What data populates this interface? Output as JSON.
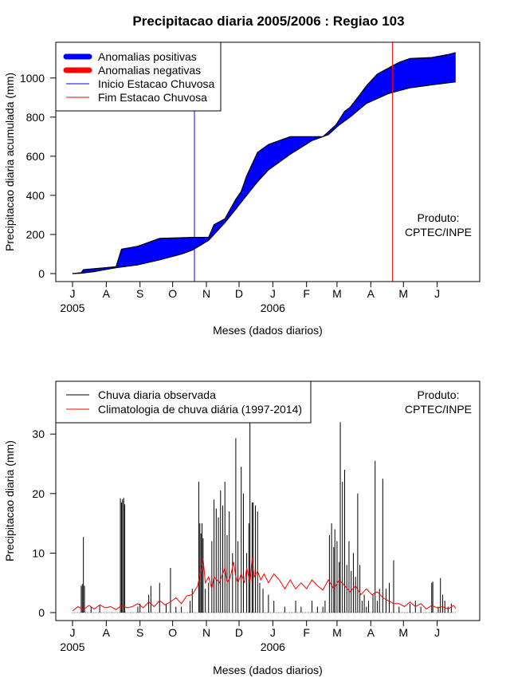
{
  "title": "Precipitacao diaria 2005/2006 : Regiao 103",
  "colors": {
    "positive": "#0000ff",
    "negative": "#ff0000",
    "observed": "#000000",
    "climatology": "#ff0000",
    "start_line": "#0000ff",
    "end_line": "#ff0000"
  },
  "chart_data": [
    {
      "type": "area",
      "ylabel": "Precipitacao diaria acumulada (mm)",
      "xlabel": "Meses (dados diarios)",
      "ylim": [
        0,
        1150
      ],
      "yticks": [
        0,
        200,
        400,
        600,
        800,
        1000
      ],
      "x_day_range": [
        0,
        365
      ],
      "month_ticks": [
        {
          "label": "J",
          "day": 0
        },
        {
          "label": "A",
          "day": 31
        },
        {
          "label": "S",
          "day": 62
        },
        {
          "label": "O",
          "day": 92
        },
        {
          "label": "N",
          "day": 123
        },
        {
          "label": "D",
          "day": 153
        },
        {
          "label": "J",
          "day": 184
        },
        {
          "label": "F",
          "day": 215
        },
        {
          "label": "M",
          "day": 243
        },
        {
          "label": "A",
          "day": 274
        },
        {
          "label": "M",
          "day": 304
        },
        {
          "label": "J",
          "day": 335
        }
      ],
      "years": [
        {
          "label": "2005",
          "day": 0
        },
        {
          "label": "2006",
          "day": 184
        }
      ],
      "legend": {
        "position": "top-left",
        "entries": [
          "Anomalias positivas",
          "Anomalias negativas",
          "Inicio Estacao Chuvosa",
          "Fim Estacao Chuvosa"
        ]
      },
      "credit": [
        "Produto:",
        "CPTEC/INPE"
      ],
      "rain_season_start_day": 112,
      "rain_season_end_day": 294,
      "observed_cumulative": [
        [
          0,
          0
        ],
        [
          8,
          5
        ],
        [
          10,
          20
        ],
        [
          40,
          35
        ],
        [
          45,
          125
        ],
        [
          60,
          140
        ],
        [
          80,
          180
        ],
        [
          110,
          185
        ],
        [
          125,
          185
        ],
        [
          130,
          250
        ],
        [
          140,
          280
        ],
        [
          150,
          380
        ],
        [
          155,
          420
        ],
        [
          160,
          500
        ],
        [
          170,
          620
        ],
        [
          175,
          640
        ],
        [
          180,
          660
        ],
        [
          200,
          700
        ],
        [
          230,
          700
        ],
        [
          242,
          760
        ],
        [
          250,
          830
        ],
        [
          255,
          850
        ],
        [
          262,
          900
        ],
        [
          270,
          960
        ],
        [
          280,
          1020
        ],
        [
          290,
          1050
        ],
        [
          300,
          1080
        ],
        [
          310,
          1100
        ],
        [
          330,
          1105
        ],
        [
          345,
          1120
        ],
        [
          352,
          1130
        ]
      ],
      "climatology_cumulative": [
        [
          0,
          0
        ],
        [
          8,
          2
        ],
        [
          20,
          10
        ],
        [
          40,
          30
        ],
        [
          60,
          45
        ],
        [
          80,
          70
        ],
        [
          100,
          100
        ],
        [
          110,
          120
        ],
        [
          125,
          170
        ],
        [
          140,
          260
        ],
        [
          150,
          330
        ],
        [
          160,
          400
        ],
        [
          170,
          470
        ],
        [
          180,
          530
        ],
        [
          200,
          610
        ],
        [
          220,
          680
        ],
        [
          235,
          710
        ],
        [
          245,
          760
        ],
        [
          255,
          800
        ],
        [
          270,
          870
        ],
        [
          290,
          920
        ],
        [
          310,
          950
        ],
        [
          330,
          965
        ],
        [
          352,
          980
        ]
      ]
    },
    {
      "type": "bar",
      "ylabel": "Precipitacao diaria (mm)",
      "xlabel": "Meses (dados diarios)",
      "ylim": [
        0,
        35
      ],
      "yticks": [
        0,
        10,
        20,
        30
      ],
      "x_day_range": [
        0,
        365
      ],
      "legend": {
        "position": "top-left",
        "entries": [
          "Chuva diaria observada",
          "Climatologia de chuva diária (1997-2014)"
        ]
      },
      "credit": [
        "Produto:",
        "CPTEC/INPE"
      ],
      "observed_daily": [
        [
          8,
          4.5
        ],
        [
          9,
          4.8
        ],
        [
          10,
          12.7
        ],
        [
          11,
          4.5
        ],
        [
          17,
          1
        ],
        [
          25,
          1.2
        ],
        [
          44,
          19.2
        ],
        [
          45,
          18.5
        ],
        [
          46,
          19
        ],
        [
          47,
          19.3
        ],
        [
          48,
          18.2
        ],
        [
          60,
          1
        ],
        [
          62,
          1.5
        ],
        [
          70,
          3
        ],
        [
          72,
          4.5
        ],
        [
          80,
          5
        ],
        [
          86,
          1.5
        ],
        [
          90,
          7.5
        ],
        [
          95,
          1
        ],
        [
          100,
          1
        ],
        [
          108,
          2
        ],
        [
          110,
          4
        ],
        [
          116,
          22
        ],
        [
          117,
          15
        ],
        [
          118,
          13.3
        ],
        [
          119,
          15
        ],
        [
          120,
          12.5
        ],
        [
          122,
          4
        ],
        [
          125,
          5
        ],
        [
          128,
          12
        ],
        [
          130,
          19
        ],
        [
          132,
          17.5
        ],
        [
          134,
          16
        ],
        [
          136,
          20.5
        ],
        [
          138,
          18
        ],
        [
          140,
          22
        ],
        [
          142,
          13
        ],
        [
          144,
          17
        ],
        [
          147,
          10
        ],
        [
          150,
          29.3
        ],
        [
          152,
          12
        ],
        [
          155,
          24.5
        ],
        [
          157,
          20
        ],
        [
          160,
          10
        ],
        [
          162,
          15
        ],
        [
          163,
          32
        ],
        [
          165,
          18.5
        ],
        [
          166,
          18.5
        ],
        [
          168,
          18
        ],
        [
          170,
          17
        ],
        [
          172,
          5
        ],
        [
          175,
          4
        ],
        [
          180,
          3
        ],
        [
          185,
          2
        ],
        [
          195,
          1
        ],
        [
          205,
          2
        ],
        [
          210,
          1
        ],
        [
          220,
          2
        ],
        [
          225,
          1
        ],
        [
          230,
          1
        ],
        [
          232,
          2
        ],
        [
          236,
          13
        ],
        [
          238,
          15
        ],
        [
          240,
          11
        ],
        [
          241,
          14
        ],
        [
          243,
          12
        ],
        [
          245,
          8.5
        ],
        [
          246,
          32
        ],
        [
          248,
          22
        ],
        [
          250,
          24
        ],
        [
          252,
          8
        ],
        [
          254,
          12
        ],
        [
          256,
          7
        ],
        [
          258,
          10
        ],
        [
          260,
          6
        ],
        [
          262,
          20
        ],
        [
          264,
          8
        ],
        [
          266,
          2
        ],
        [
          268,
          3
        ],
        [
          270,
          1
        ],
        [
          272,
          2
        ],
        [
          276,
          3
        ],
        [
          278,
          25.5
        ],
        [
          280,
          2
        ],
        [
          282,
          4
        ],
        [
          285,
          22.5
        ],
        [
          288,
          4
        ],
        [
          291,
          5
        ],
        [
          295,
          8.8
        ],
        [
          300,
          1
        ],
        [
          310,
          1.5
        ],
        [
          315,
          2
        ],
        [
          320,
          1
        ],
        [
          330,
          5
        ],
        [
          331,
          5.2
        ],
        [
          336,
          1
        ],
        [
          338,
          5.8
        ],
        [
          340,
          3
        ],
        [
          342,
          2
        ],
        [
          345,
          1
        ],
        [
          348,
          1.5
        ]
      ],
      "climatology_daily": [
        [
          0,
          0.3
        ],
        [
          5,
          1
        ],
        [
          10,
          0.5
        ],
        [
          15,
          1.2
        ],
        [
          20,
          0.6
        ],
        [
          25,
          1.3
        ],
        [
          30,
          0.8
        ],
        [
          35,
          1
        ],
        [
          40,
          0.5
        ],
        [
          45,
          1.2
        ],
        [
          50,
          0.8
        ],
        [
          55,
          1
        ],
        [
          60,
          1.5
        ],
        [
          65,
          0.8
        ],
        [
          70,
          1.8
        ],
        [
          75,
          1
        ],
        [
          80,
          2
        ],
        [
          85,
          1.3
        ],
        [
          90,
          1.8
        ],
        [
          95,
          2.5
        ],
        [
          100,
          1.5
        ],
        [
          105,
          2.8
        ],
        [
          110,
          3
        ],
        [
          115,
          4.5
        ],
        [
          120,
          9
        ],
        [
          122,
          5
        ],
        [
          125,
          6
        ],
        [
          128,
          4
        ],
        [
          130,
          6
        ],
        [
          135,
          5
        ],
        [
          140,
          7.5
        ],
        [
          142,
          5
        ],
        [
          145,
          6
        ],
        [
          148,
          8.5
        ],
        [
          150,
          6
        ],
        [
          152,
          5
        ],
        [
          155,
          6.5
        ],
        [
          158,
          5
        ],
        [
          160,
          7.5
        ],
        [
          163,
          5
        ],
        [
          165,
          9.2
        ],
        [
          167,
          6
        ],
        [
          170,
          7
        ],
        [
          173,
          5.5
        ],
        [
          176,
          6.5
        ],
        [
          180,
          5
        ],
        [
          185,
          6.5
        ],
        [
          190,
          5.5
        ],
        [
          195,
          4
        ],
        [
          200,
          5.5
        ],
        [
          205,
          4
        ],
        [
          210,
          5
        ],
        [
          215,
          4
        ],
        [
          220,
          5.5
        ],
        [
          225,
          4.5
        ],
        [
          230,
          3.8
        ],
        [
          235,
          5.5
        ],
        [
          240,
          4
        ],
        [
          245,
          5.5
        ],
        [
          250,
          4.5
        ],
        [
          255,
          3.5
        ],
        [
          260,
          4.5
        ],
        [
          265,
          3
        ],
        [
          270,
          4
        ],
        [
          275,
          3
        ],
        [
          280,
          3.5
        ],
        [
          285,
          2.5
        ],
        [
          290,
          2
        ],
        [
          295,
          1.5
        ],
        [
          300,
          1.5
        ],
        [
          305,
          1
        ],
        [
          310,
          1.8
        ],
        [
          315,
          1
        ],
        [
          320,
          1.5
        ],
        [
          325,
          0.6
        ],
        [
          330,
          1.2
        ],
        [
          335,
          0.8
        ],
        [
          340,
          1
        ],
        [
          345,
          0.6
        ],
        [
          350,
          1.2
        ],
        [
          352,
          0.7
        ]
      ]
    }
  ]
}
